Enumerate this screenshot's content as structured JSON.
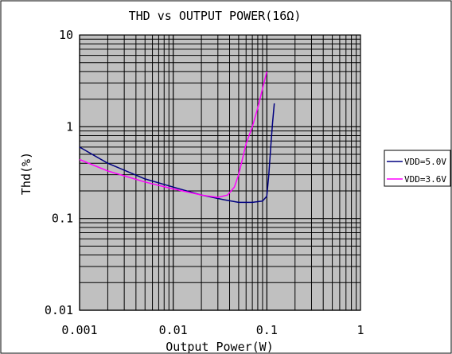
{
  "chart_data": {
    "type": "line",
    "title": "THD vs OUTPUT POWER(16Ω)",
    "xlabel": "Output Power(W)",
    "ylabel": "Thd(%)",
    "x_scale": "log",
    "y_scale": "log",
    "xlim": [
      0.001,
      1
    ],
    "ylim": [
      0.01,
      10
    ],
    "x_ticks": [
      "0.001",
      "0.01",
      "0.1",
      "1"
    ],
    "y_ticks": [
      "0.01",
      "0.1",
      "1",
      "10"
    ],
    "grid": true,
    "plot_background": "#c0c0c0",
    "legend_position": "right",
    "series": [
      {
        "name": "VDD=5.0V",
        "color": "#000080",
        "x": [
          0.001,
          0.002,
          0.005,
          0.01,
          0.02,
          0.035,
          0.05,
          0.07,
          0.09,
          0.1,
          0.105,
          0.11,
          0.115,
          0.12
        ],
        "y": [
          0.6,
          0.4,
          0.27,
          0.22,
          0.18,
          0.16,
          0.15,
          0.15,
          0.155,
          0.175,
          0.3,
          0.6,
          1.1,
          1.8
        ]
      },
      {
        "name": "VDD=3.6V",
        "color": "#ff00ff",
        "x": [
          0.001,
          0.002,
          0.005,
          0.01,
          0.02,
          0.03,
          0.038,
          0.045,
          0.05,
          0.055,
          0.06,
          0.07,
          0.08,
          0.09,
          0.1
        ],
        "y": [
          0.44,
          0.33,
          0.25,
          0.21,
          0.18,
          0.17,
          0.18,
          0.22,
          0.3,
          0.45,
          0.65,
          1.0,
          1.6,
          2.6,
          4.0
        ]
      }
    ]
  }
}
